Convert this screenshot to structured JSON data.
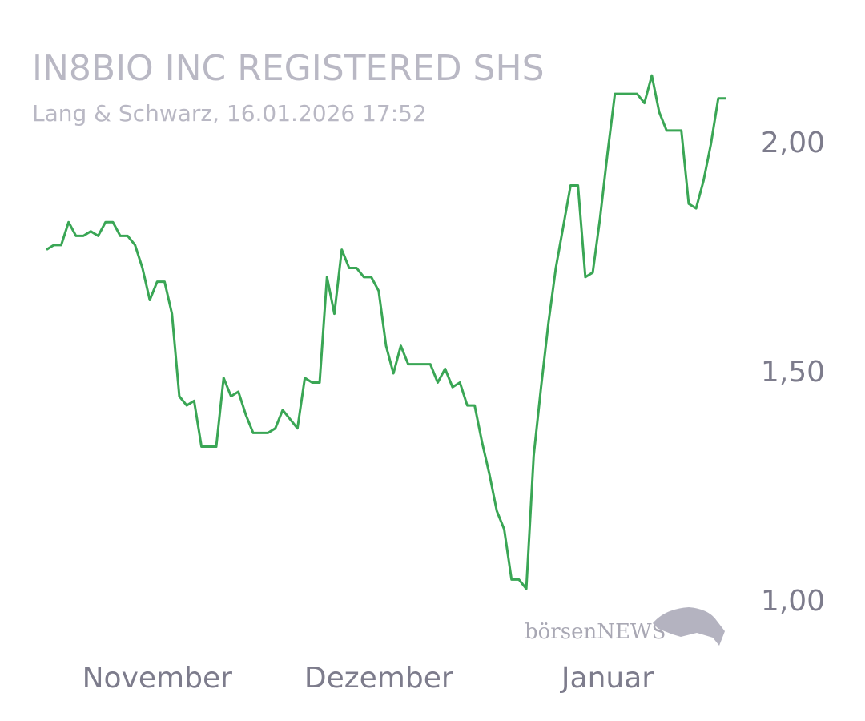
{
  "chart_data": {
    "type": "line",
    "title": "IN8BIO INC REGISTERED SHS",
    "subtitle": "Lang & Schwarz, 16.01.2026 17:52",
    "logo": "börsenNEWS",
    "x": [
      0,
      1,
      2,
      3,
      4,
      5,
      6,
      7,
      8,
      9,
      10,
      11,
      12,
      13,
      14,
      15,
      16,
      17,
      18,
      19,
      20,
      21,
      22,
      23,
      24,
      25,
      26,
      27,
      28,
      29,
      30,
      31,
      32,
      33,
      34,
      35,
      36,
      37,
      38,
      39,
      40,
      41,
      42,
      43,
      44,
      45,
      46,
      47,
      48,
      49,
      50,
      51,
      52,
      53,
      54,
      55,
      56,
      57,
      58,
      59,
      60,
      61,
      62,
      63,
      64,
      65,
      66,
      67,
      68,
      69,
      70,
      71,
      72,
      73,
      74,
      75,
      76,
      77,
      78,
      79,
      80,
      81,
      82,
      83,
      84,
      85,
      86,
      87,
      88,
      89,
      90,
      91,
      92
    ],
    "series": [
      {
        "color": "#3aa655",
        "values": [
          1.77,
          1.78,
          1.78,
          1.83,
          1.8,
          1.8,
          1.81,
          1.8,
          1.83,
          1.83,
          1.8,
          1.8,
          1.78,
          1.73,
          1.66,
          1.7,
          1.7,
          1.63,
          1.45,
          1.43,
          1.44,
          1.34,
          1.34,
          1.34,
          1.49,
          1.45,
          1.46,
          1.41,
          1.37,
          1.37,
          1.37,
          1.38,
          1.42,
          1.4,
          1.38,
          1.49,
          1.48,
          1.48,
          1.71,
          1.63,
          1.77,
          1.73,
          1.73,
          1.71,
          1.71,
          1.68,
          1.56,
          1.5,
          1.56,
          1.52,
          1.52,
          1.52,
          1.52,
          1.48,
          1.51,
          1.47,
          1.48,
          1.43,
          1.43,
          1.35,
          1.28,
          1.2,
          1.16,
          1.05,
          1.05,
          1.03,
          1.32,
          1.47,
          1.61,
          1.73,
          1.82,
          1.91,
          1.91,
          1.71,
          1.72,
          1.84,
          1.98,
          2.11,
          2.11,
          2.11,
          2.11,
          2.09,
          2.15,
          2.07,
          2.03,
          2.03,
          2.03,
          1.87,
          1.86,
          1.92,
          2.0,
          2.1,
          2.1
        ]
      }
    ],
    "xlim": [
      0,
      92
    ],
    "xticks": [
      {
        "value": 15,
        "label": "November"
      },
      {
        "value": 45,
        "label": "Dezember"
      },
      {
        "value": 76,
        "label": "Januar"
      }
    ],
    "ylim": [
      0.92,
      2.2
    ],
    "yticks": [
      {
        "value": 1,
        "label": "1,00"
      },
      {
        "value": 1.5,
        "label": "1,50"
      },
      {
        "value": 2,
        "label": "2,00"
      }
    ],
    "grid": false
  }
}
